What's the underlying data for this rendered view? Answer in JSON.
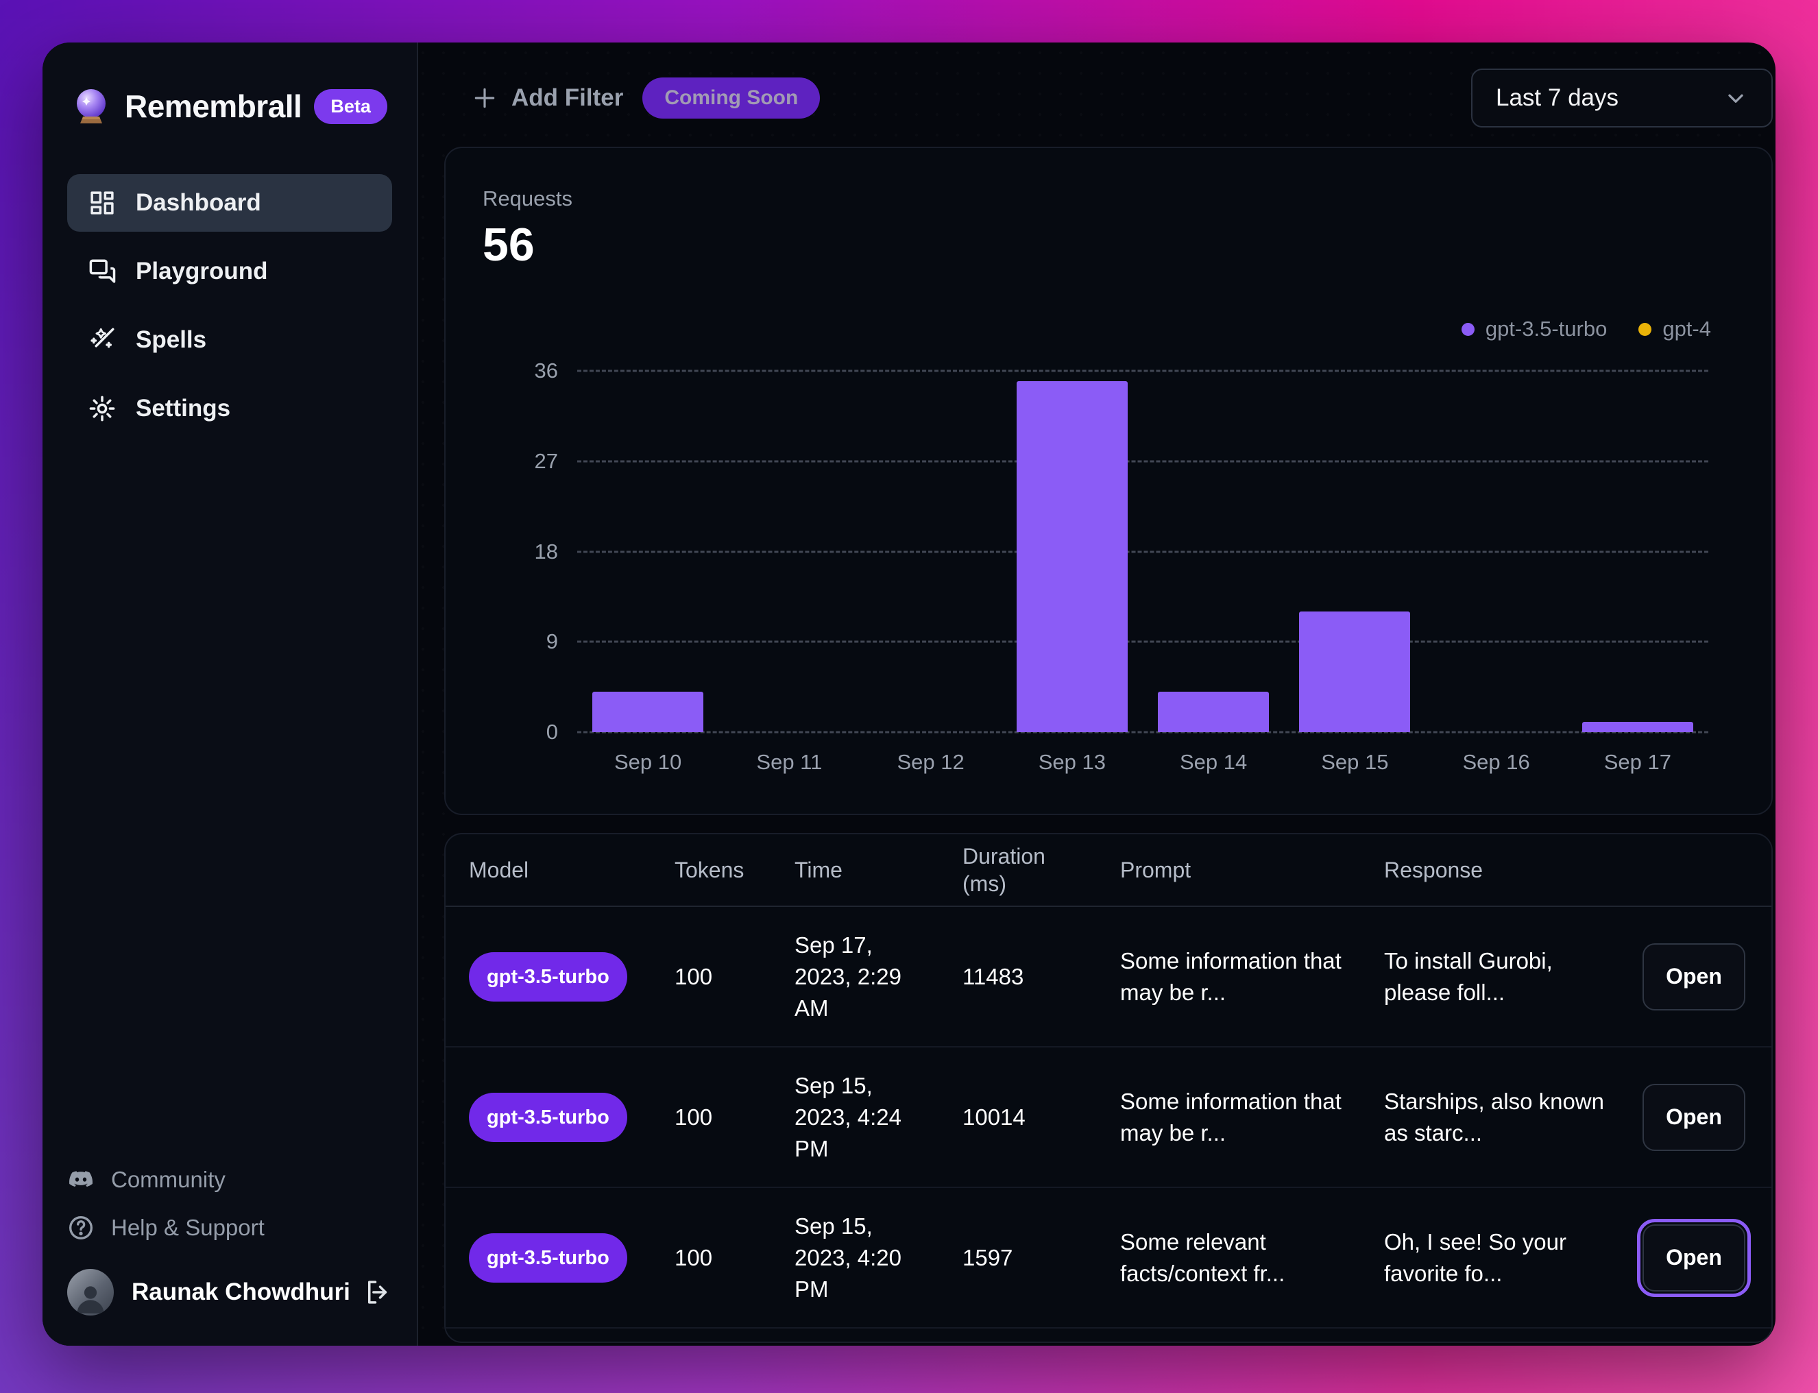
{
  "brand": {
    "name": "Remembrall",
    "badge": "Beta"
  },
  "sidebar": {
    "items": [
      {
        "label": "Dashboard",
        "active": true
      },
      {
        "label": "Playground",
        "active": false
      },
      {
        "label": "Spells",
        "active": false
      },
      {
        "label": "Settings",
        "active": false
      }
    ],
    "footer_links": [
      {
        "label": "Community"
      },
      {
        "label": "Help & Support"
      }
    ],
    "user": {
      "name": "Raunak Chowdhuri"
    }
  },
  "topbar": {
    "add_filter_label": "Add Filter",
    "coming_soon_label": "Coming Soon",
    "date_range": "Last 7 days"
  },
  "stats": {
    "requests_label": "Requests",
    "requests_value": "56"
  },
  "colors": {
    "accent": "#8b5cf6",
    "gpt4": "#eab308",
    "badge": "#7c3aed"
  },
  "chart_data": {
    "type": "bar",
    "categories": [
      "Sep 10",
      "Sep 11",
      "Sep 12",
      "Sep 13",
      "Sep 14",
      "Sep 15",
      "Sep 16",
      "Sep 17"
    ],
    "series": [
      {
        "name": "gpt-3.5-turbo",
        "color": "#8b5cf6",
        "values": [
          4,
          0,
          0,
          35,
          4,
          12,
          0,
          1
        ]
      },
      {
        "name": "gpt-4",
        "color": "#eab308",
        "values": [
          0,
          0,
          0,
          0,
          0,
          0,
          0,
          0
        ]
      }
    ],
    "title": "Requests",
    "total": 56,
    "xlabel": "",
    "ylabel": "",
    "ylim": [
      0,
      36
    ],
    "yticks": [
      0,
      9,
      18,
      27,
      36
    ],
    "grid": true,
    "legend_position": "top-right"
  },
  "table": {
    "columns": [
      "Model",
      "Tokens",
      "Time",
      "Duration (ms)",
      "Prompt",
      "Response"
    ],
    "rows": [
      {
        "model": "gpt-3.5-turbo",
        "tokens": "100",
        "time": "Sep 17, 2023, 2:29 AM",
        "duration": "11483",
        "prompt": "Some information that may be r...",
        "response": "To install Gurobi, please foll...",
        "action": "Open",
        "focused": false
      },
      {
        "model": "gpt-3.5-turbo",
        "tokens": "100",
        "time": "Sep 15, 2023, 4:24 PM",
        "duration": "10014",
        "prompt": "Some information that may be r...",
        "response": "Starships, also known as starc...",
        "action": "Open",
        "focused": false
      },
      {
        "model": "gpt-3.5-turbo",
        "tokens": "100",
        "time": "Sep 15, 2023, 4:20 PM",
        "duration": "1597",
        "prompt": "Some relevant facts/context fr...",
        "response": "Oh, I see! So your favorite fo...",
        "action": "Open",
        "focused": true
      }
    ]
  }
}
